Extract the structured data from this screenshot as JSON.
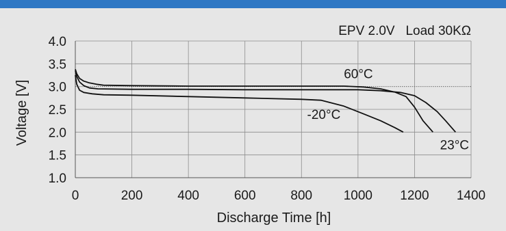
{
  "chart_data": {
    "type": "line",
    "title": "",
    "annotation": "EPV 2.0V   Load 30KΩ",
    "xlabel": "Discharge Time [h]",
    "ylabel": "Voltage [V]",
    "xlim": [
      0,
      1400
    ],
    "ylim": [
      1.0,
      4.0
    ],
    "xticks": [
      0,
      200,
      400,
      600,
      800,
      1000,
      1200,
      1400
    ],
    "yticks": [
      "1.0",
      "1.5",
      "2.0",
      "2.5",
      "3.0",
      "3.5",
      "4.0"
    ],
    "grid": true,
    "reference_line_y": 3.0,
    "series": [
      {
        "name": "60°C",
        "x": [
          0,
          5,
          15,
          30,
          50,
          75,
          100,
          200,
          400,
          600,
          800,
          950,
          1020,
          1080,
          1130,
          1170,
          1200,
          1230,
          1265
        ],
        "y": [
          3.38,
          3.28,
          3.18,
          3.12,
          3.08,
          3.05,
          3.03,
          3.02,
          3.01,
          3.01,
          3.01,
          3.01,
          2.99,
          2.95,
          2.88,
          2.78,
          2.55,
          2.25,
          2.0
        ]
      },
      {
        "name": "23°C",
        "x": [
          0,
          5,
          15,
          30,
          50,
          80,
          200,
          400,
          600,
          800,
          1000,
          1080,
          1150,
          1200,
          1240,
          1280,
          1310,
          1345
        ],
        "y": [
          3.35,
          3.22,
          3.1,
          3.02,
          2.97,
          2.95,
          2.94,
          2.94,
          2.93,
          2.93,
          2.93,
          2.91,
          2.87,
          2.8,
          2.65,
          2.45,
          2.25,
          2.0
        ]
      },
      {
        "name": "-20°C",
        "x": [
          0,
          5,
          15,
          30,
          60,
          100,
          200,
          400,
          600,
          800,
          870,
          950,
          1020,
          1080,
          1130,
          1160
        ],
        "y": [
          3.25,
          3.05,
          2.92,
          2.87,
          2.84,
          2.82,
          2.81,
          2.78,
          2.75,
          2.72,
          2.7,
          2.57,
          2.4,
          2.25,
          2.1,
          2.0
        ]
      }
    ],
    "labels": [
      {
        "text": "60°C",
        "x": 950,
        "y": 3.18
      },
      {
        "text": "-20°C",
        "x": 820,
        "y": 2.29
      },
      {
        "text": "23°C",
        "x": 1290,
        "y": 1.62
      }
    ]
  }
}
